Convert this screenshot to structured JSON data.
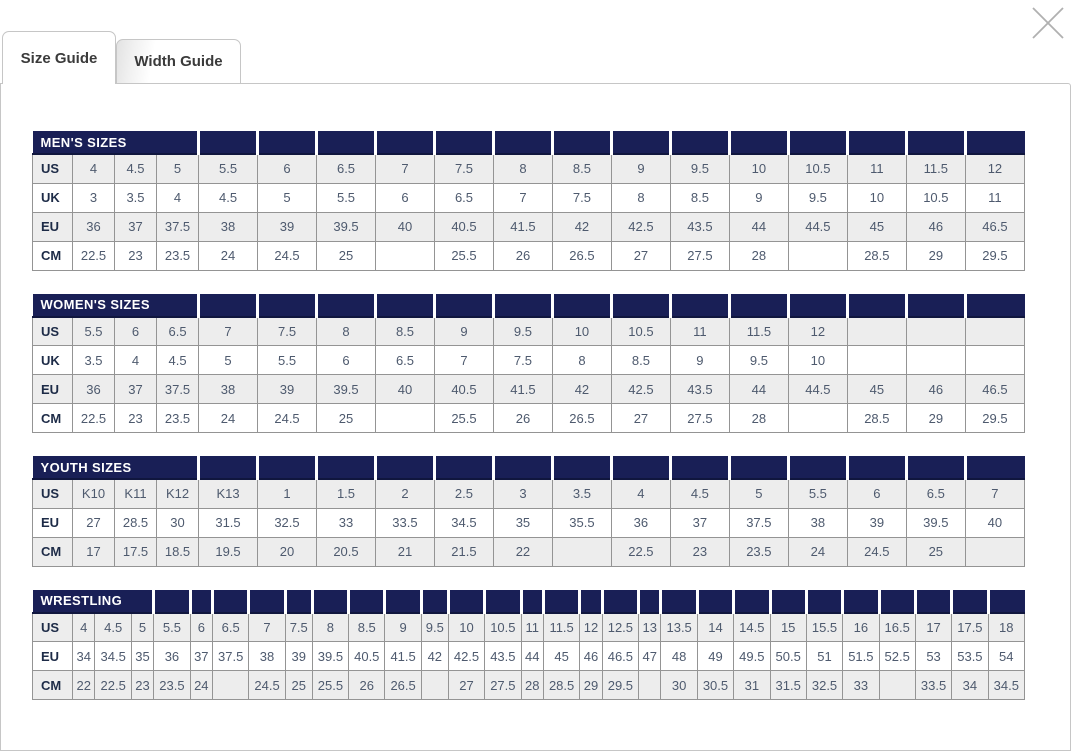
{
  "tabs": [
    {
      "label": "Size Guide",
      "active": true
    },
    {
      "label": "Width Guide",
      "active": false
    }
  ],
  "close_icon": "close-x",
  "colors": {
    "header_navy": "#191f56",
    "header_divider": "#10163e",
    "row_stripe": "#ededed",
    "cell_border": "#949494",
    "value_text": "#4e5a6e",
    "label_text": "#1d2b47",
    "tab_border": "#c6c6c6",
    "tab_text": "#3b3b3b",
    "close_icon_color": "#b0b0b0"
  },
  "tables": [
    {
      "title": "MEN'S SIZES",
      "title_colspan": 4,
      "columns": 17,
      "rows": [
        {
          "label": "US",
          "values": [
            "4",
            "4.5",
            "5",
            "5.5",
            "6",
            "6.5",
            "7",
            "7.5",
            "8",
            "8.5",
            "9",
            "9.5",
            "10",
            "10.5",
            "11",
            "11.5",
            "12"
          ]
        },
        {
          "label": "UK",
          "values": [
            "3",
            "3.5",
            "4",
            "4.5",
            "5",
            "5.5",
            "6",
            "6.5",
            "7",
            "7.5",
            "8",
            "8.5",
            "9",
            "9.5",
            "10",
            "10.5",
            "11"
          ]
        },
        {
          "label": "EU",
          "values": [
            "36",
            "37",
            "37.5",
            "38",
            "39",
            "39.5",
            "40",
            "40.5",
            "41.5",
            "42",
            "42.5",
            "43.5",
            "44",
            "44.5",
            "45",
            "46",
            "46.5"
          ]
        },
        {
          "label": "CM",
          "values": [
            "22.5",
            "23",
            "23.5",
            "24",
            "24.5",
            "25",
            "",
            "25.5",
            "26",
            "26.5",
            "27",
            "27.5",
            "28",
            "",
            "28.5",
            "29",
            "29.5"
          ]
        }
      ]
    },
    {
      "title": "WOMEN'S SIZES",
      "title_colspan": 4,
      "columns": 17,
      "rows": [
        {
          "label": "US",
          "values": [
            "5.5",
            "6",
            "6.5",
            "7",
            "7.5",
            "8",
            "8.5",
            "9",
            "9.5",
            "10",
            "10.5",
            "11",
            "11.5",
            "12",
            "",
            "",
            ""
          ]
        },
        {
          "label": "UK",
          "values": [
            "3.5",
            "4",
            "4.5",
            "5",
            "5.5",
            "6",
            "6.5",
            "7",
            "7.5",
            "8",
            "8.5",
            "9",
            "9.5",
            "10",
            "",
            "",
            ""
          ]
        },
        {
          "label": "EU",
          "values": [
            "36",
            "37",
            "37.5",
            "38",
            "39",
            "39.5",
            "40",
            "40.5",
            "41.5",
            "42",
            "42.5",
            "43.5",
            "44",
            "44.5",
            "45",
            "46",
            "46.5"
          ]
        },
        {
          "label": "CM",
          "values": [
            "22.5",
            "23",
            "23.5",
            "24",
            "24.5",
            "25",
            "",
            "25.5",
            "26",
            "26.5",
            "27",
            "27.5",
            "28",
            "",
            "28.5",
            "29",
            "29.5"
          ]
        }
      ]
    },
    {
      "title": "YOUTH SIZES",
      "title_colspan": 4,
      "columns": 17,
      "rows": [
        {
          "label": "US",
          "values": [
            "K10",
            "K11",
            "K12",
            "K13",
            "1",
            "1.5",
            "2",
            "2.5",
            "3",
            "3.5",
            "4",
            "4.5",
            "5",
            "5.5",
            "6",
            "6.5",
            "7"
          ]
        },
        {
          "label": "EU",
          "values": [
            "27",
            "28.5",
            "30",
            "31.5",
            "32.5",
            "33",
            "33.5",
            "34.5",
            "35",
            "35.5",
            "36",
            "37",
            "37.5",
            "38",
            "39",
            "39.5",
            "40"
          ]
        },
        {
          "label": "CM",
          "values": [
            "17",
            "17.5",
            "18.5",
            "19.5",
            "20",
            "20.5",
            "21",
            "21.5",
            "22",
            "",
            "22.5",
            "23",
            "23.5",
            "24",
            "24.5",
            "25",
            ""
          ]
        }
      ]
    },
    {
      "title": "WRESTLING",
      "title_colspan": 4,
      "columns": 29,
      "rows": [
        {
          "label": "US",
          "values": [
            "4",
            "4.5",
            "5",
            "5.5",
            "6",
            "6.5",
            "7",
            "7.5",
            "8",
            "8.5",
            "9",
            "9.5",
            "10",
            "10.5",
            "11",
            "11.5",
            "12",
            "12.5",
            "13",
            "13.5",
            "14",
            "14.5",
            "15",
            "15.5",
            "16",
            "16.5",
            "17",
            "17.5",
            "18"
          ]
        },
        {
          "label": "EU",
          "values": [
            "34",
            "34.5",
            "35",
            "36",
            "37",
            "37.5",
            "38",
            "39",
            "39.5",
            "40.5",
            "41.5",
            "42",
            "42.5",
            "43.5",
            "44",
            "45",
            "46",
            "46.5",
            "47",
            "48",
            "49",
            "49.5",
            "50.5",
            "51",
            "51.5",
            "52.5",
            "53",
            "53.5",
            "54"
          ]
        },
        {
          "label": "CM",
          "values": [
            "22",
            "22.5",
            "23",
            "23.5",
            "24",
            "",
            "24.5",
            "25",
            "25.5",
            "26",
            "26.5",
            "",
            "27",
            "27.5",
            "28",
            "28.5",
            "29",
            "29.5",
            "",
            "30",
            "30.5",
            "31",
            "31.5",
            "32.5",
            "33",
            "",
            "33.5",
            "34",
            "34.5"
          ]
        }
      ]
    }
  ]
}
